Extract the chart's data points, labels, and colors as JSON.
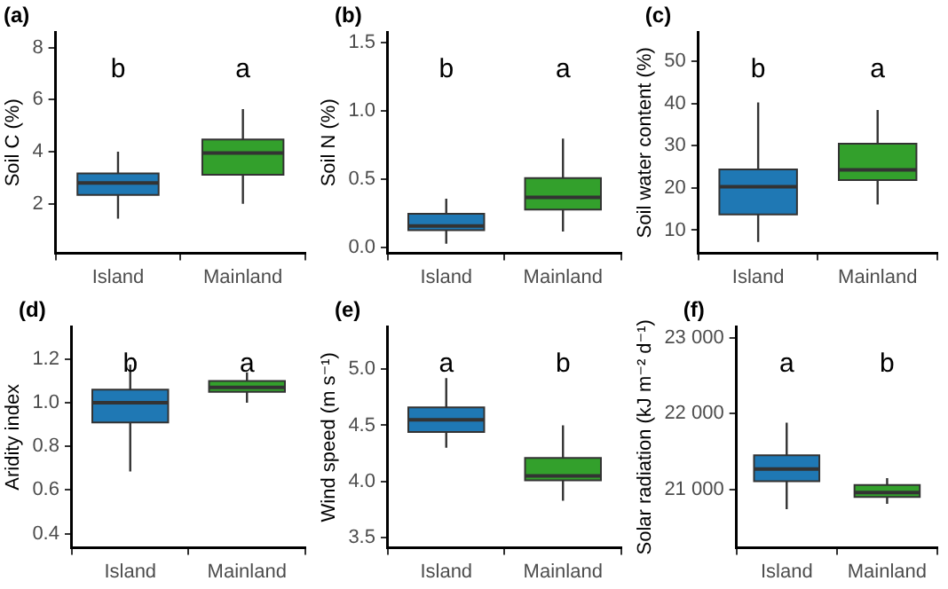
{
  "chart_data": [
    {
      "type": "box",
      "title": "(a)",
      "ylabel": "Soil C (%)",
      "categories": [
        "Island",
        "Mainland"
      ],
      "colors": [
        "#1f78b4",
        "#33a02c"
      ],
      "grid": false,
      "legend": false,
      "ylim": [
        0.1,
        8.6
      ],
      "yticks": [
        2,
        4,
        6,
        8
      ],
      "boxes": [
        {
          "low": 1.43,
          "q1": 2.34,
          "median": 2.8,
          "q3": 3.17,
          "high": 4.0
        },
        {
          "low": 2.0,
          "q1": 3.12,
          "median": 3.95,
          "q3": 4.47,
          "high": 5.64
        }
      ],
      "annotations": [
        "b",
        "a"
      ]
    },
    {
      "type": "box",
      "title": "(b)",
      "ylabel": "Soil N (%)",
      "categories": [
        "Island",
        "Mainland"
      ],
      "colors": [
        "#1f78b4",
        "#33a02c"
      ],
      "grid": false,
      "legend": false,
      "ylim": [
        -0.04,
        1.58
      ],
      "yticks": [
        {
          "value": 0,
          "label": "0.0"
        },
        0.5,
        {
          "value": 1,
          "label": "1.0"
        },
        1.5
      ],
      "boxes": [
        {
          "low": 0.03,
          "q1": 0.13,
          "median": 0.16,
          "q3": 0.25,
          "high": 0.36
        },
        {
          "low": 0.12,
          "q1": 0.28,
          "median": 0.37,
          "q3": 0.51,
          "high": 0.8
        }
      ],
      "annotations": [
        "b",
        "a"
      ]
    },
    {
      "type": "box",
      "title": "(c)",
      "ylabel": "Soil water content (%)",
      "categories": [
        "Island",
        "Mainland"
      ],
      "colors": [
        "#1f78b4",
        "#33a02c"
      ],
      "grid": false,
      "legend": false,
      "ylim": [
        4.5,
        57
      ],
      "yticks": [
        10,
        20,
        30,
        40,
        50
      ],
      "boxes": [
        {
          "low": 7.2,
          "q1": 13.7,
          "median": 20.3,
          "q3": 24.4,
          "high": 40.3
        },
        {
          "low": 16.1,
          "q1": 21.9,
          "median": 24.3,
          "q3": 30.5,
          "high": 38.5
        }
      ],
      "annotations": [
        "b",
        "a"
      ]
    },
    {
      "type": "box",
      "title": "(d)",
      "ylabel": "Aridity index",
      "categories": [
        "Island",
        "Mainland"
      ],
      "colors": [
        "#1f78b4",
        "#33a02c"
      ],
      "grid": false,
      "legend": false,
      "ylim": [
        0.335,
        1.35
      ],
      "yticks": [
        0.4,
        0.6,
        0.8,
        {
          "value": 1,
          "label": "1.0"
        },
        1.2
      ],
      "boxes": [
        {
          "low": 0.685,
          "q1": 0.91,
          "median": 1.0,
          "q3": 1.06,
          "high": 1.175
        },
        {
          "low": 1.0,
          "q1": 1.05,
          "median": 1.07,
          "q3": 1.1,
          "high": 1.14
        }
      ],
      "annotations": [
        "b",
        "a"
      ]
    },
    {
      "type": "box",
      "title": "(e)",
      "ylabel": "Wind speed (m s⁻¹)",
      "categories": [
        "Island",
        "Mainland"
      ],
      "colors": [
        "#1f78b4",
        "#33a02c"
      ],
      "grid": false,
      "legend": false,
      "ylim": [
        3.41,
        5.38
      ],
      "yticks": [
        3.5,
        {
          "value": 4,
          "label": "4.0"
        },
        4.5,
        {
          "value": 5,
          "label": "5.0"
        }
      ],
      "boxes": [
        {
          "low": 4.3,
          "q1": 4.44,
          "median": 4.55,
          "q3": 4.66,
          "high": 4.92
        },
        {
          "low": 3.83,
          "q1": 4.01,
          "median": 4.05,
          "q3": 4.21,
          "high": 4.5
        }
      ],
      "annotations": [
        "a",
        "b"
      ]
    },
    {
      "type": "box",
      "title": "(f)",
      "ylabel": "Solar radiation (kJ m⁻² d⁻¹)",
      "categories": [
        "Island",
        "Mainland"
      ],
      "colors": [
        "#1f78b4",
        "#33a02c"
      ],
      "grid": false,
      "legend": false,
      "ylim": [
        20230,
        23150
      ],
      "yticks": [
        {
          "value": 21000,
          "label": "21 000"
        },
        {
          "value": 22000,
          "label": "22 000"
        },
        {
          "value": 23000,
          "label": "23 000"
        }
      ],
      "boxes": [
        {
          "low": 20740,
          "q1": 21110,
          "median": 21270,
          "q3": 21450,
          "high": 21880
        },
        {
          "low": 20810,
          "q1": 20900,
          "median": 20960,
          "q3": 21060,
          "high": 21150
        }
      ],
      "annotations": [
        "a",
        "b"
      ]
    }
  ]
}
